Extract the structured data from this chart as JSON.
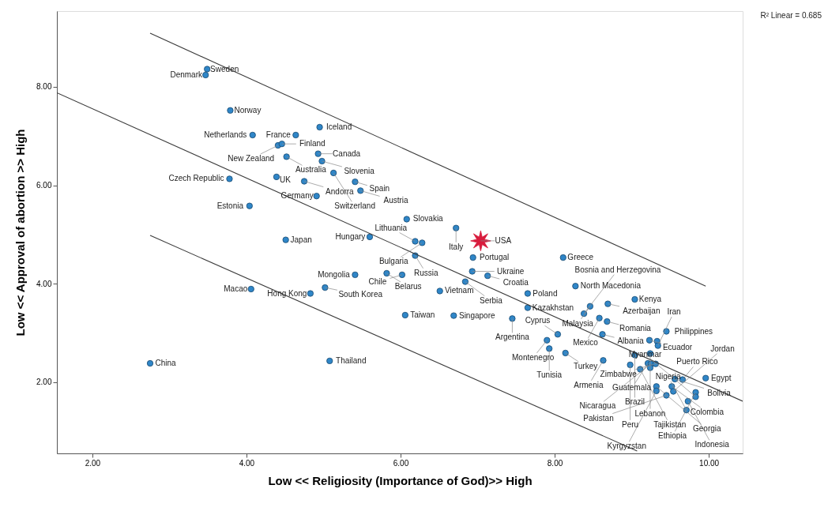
{
  "chart_data": {
    "type": "scatter",
    "xlabel": "Low << Religiosity (Importance of God)>> High",
    "ylabel": "Low << Approval of abortion >> High",
    "xlim": [
      1.54,
      10.44
    ],
    "ylim": [
      0.55,
      9.54
    ],
    "xticks": [
      {
        "value": 2,
        "label": "2.00"
      },
      {
        "value": 4,
        "label": "4.00"
      },
      {
        "value": 6,
        "label": "6.00"
      },
      {
        "value": 8,
        "label": "8.00"
      },
      {
        "value": 10,
        "label": "10.00"
      }
    ],
    "yticks": [
      {
        "value": 2,
        "label": "2.00"
      },
      {
        "value": 4,
        "label": "4.00"
      },
      {
        "value": 6,
        "label": "6.00"
      },
      {
        "value": 8,
        "label": "8.00"
      }
    ],
    "grid": false,
    "series": [
      {
        "marker": "circle",
        "color": "#2f86c8",
        "x": [
          3.49,
          3.47,
          3.79,
          4.95,
          4.08,
          4.64,
          4.41,
          4.46,
          4.52,
          4.93,
          4.98,
          5.13,
          4.39,
          3.78,
          4.75,
          5.41,
          4.91,
          5.48,
          4.04,
          6.08,
          6.72,
          6.19,
          6.28,
          5.6,
          6.19,
          6.94,
          4.51,
          8.11,
          5.82,
          5.41,
          6.02,
          6.93,
          7.13,
          6.84,
          6.51,
          7.65,
          8.27,
          4.06,
          4.83,
          5.02,
          7.65,
          6.06,
          6.69,
          7.45,
          8.46,
          8.69,
          9.04,
          8.38,
          8.58,
          8.68,
          8.04,
          8.62,
          9.45,
          7.9,
          7.93,
          9.23,
          9.33,
          9.34,
          8.14,
          9.04,
          9.24,
          8.63,
          8.98,
          9.11,
          9.21,
          9.25,
          9.24,
          9.31,
          9.56,
          9.66,
          9.96,
          9.32,
          9.32,
          9.52,
          9.54,
          9.45,
          9.83,
          9.83,
          9.73,
          9.71,
          2.75,
          5.08
        ],
        "values": [
          8.36,
          8.24,
          7.52,
          7.18,
          7.02,
          7.02,
          6.81,
          6.84,
          6.58,
          6.64,
          6.49,
          6.25,
          6.17,
          6.13,
          6.08,
          6.07,
          5.78,
          5.89,
          5.58,
          5.31,
          5.13,
          4.86,
          4.83,
          4.95,
          4.57,
          4.53,
          4.89,
          4.53,
          4.21,
          4.18,
          4.18,
          4.25,
          4.16,
          4.04,
          3.85,
          3.8,
          3.95,
          3.89,
          3.8,
          3.92,
          3.51,
          3.36,
          3.35,
          3.29,
          3.54,
          3.59,
          3.68,
          3.39,
          3.3,
          3.23,
          2.97,
          2.97,
          3.03,
          2.85,
          2.68,
          2.85,
          2.83,
          2.74,
          2.59,
          2.55,
          2.58,
          2.44,
          2.35,
          2.26,
          2.38,
          2.37,
          2.29,
          2.37,
          2.06,
          2.05,
          2.08,
          1.91,
          1.82,
          1.91,
          1.81,
          1.73,
          1.79,
          1.7,
          1.61,
          1.43,
          2.38,
          2.43
        ]
      },
      {
        "marker": "star",
        "color": "#d81b3c",
        "x": [
          7.04
        ],
        "values": [
          4.87
        ]
      },
      {
        "type": "line",
        "color": "#3a3a3a",
        "x": [
          1.54,
          10.44
        ],
        "values": [
          7.88,
          1.61
        ]
      },
      {
        "type": "line",
        "color": "#3a3a3a",
        "x": [
          2.75,
          9.96
        ],
        "values": [
          9.09,
          3.95
        ]
      },
      {
        "type": "line",
        "color": "#3a3a3a",
        "x": [
          2.75,
          9.07
        ],
        "values": [
          4.98,
          0.6
        ]
      }
    ],
    "annotations": [
      "R² Linear = 0.685",
      {
        "text": "Sweden",
        "x": 3.49,
        "y": 8.36
      },
      {
        "text": "Denmark",
        "x": 3.47,
        "y": 8.24
      },
      {
        "text": "Norway",
        "x": 3.79,
        "y": 7.52
      },
      {
        "text": "Iceland",
        "x": 4.95,
        "y": 7.18
      },
      {
        "text": "Netherlands",
        "x": 4.08,
        "y": 7.02
      },
      {
        "text": "France",
        "x": 4.64,
        "y": 7.02
      },
      {
        "text": "Finland",
        "x": 4.46,
        "y": 6.84
      },
      {
        "text": "New Zealand",
        "x": 4.41,
        "y": 6.81
      },
      {
        "text": "Australia",
        "x": 4.52,
        "y": 6.58
      },
      {
        "text": "Canada",
        "x": 4.93,
        "y": 6.64
      },
      {
        "text": "Slovenia",
        "x": 4.98,
        "y": 6.49
      },
      {
        "text": "Switzerland",
        "x": 5.13,
        "y": 6.25
      },
      {
        "text": "UK",
        "x": 4.39,
        "y": 6.17
      },
      {
        "text": "Czech Republic",
        "x": 3.78,
        "y": 6.13
      },
      {
        "text": "Andorra",
        "x": 4.75,
        "y": 6.08
      },
      {
        "text": "Germany",
        "x": 4.91,
        "y": 5.78
      },
      {
        "text": "Spain",
        "x": 5.41,
        "y": 6.07
      },
      {
        "text": "Austria",
        "x": 5.48,
        "y": 5.89
      },
      {
        "text": "Estonia",
        "x": 4.04,
        "y": 5.58
      },
      {
        "text": "Slovakia",
        "x": 6.08,
        "y": 5.31
      },
      {
        "text": "Italy",
        "x": 6.72,
        "y": 5.13
      },
      {
        "text": "Lithuania",
        "x": 6.19,
        "y": 4.86
      },
      {
        "text": "USA",
        "x": 7.04,
        "y": 4.87
      },
      {
        "text": "Bulgaria",
        "x": 6.28,
        "y": 4.83
      },
      {
        "text": "Hungary",
        "x": 5.6,
        "y": 4.95
      },
      {
        "text": "Russia",
        "x": 6.19,
        "y": 4.57
      },
      {
        "text": "Japan",
        "x": 4.51,
        "y": 4.89
      },
      {
        "text": "Greece",
        "x": 8.11,
        "y": 4.53
      },
      {
        "text": "Portugal",
        "x": 6.94,
        "y": 4.53
      },
      {
        "text": "Belarus",
        "x": 5.82,
        "y": 4.21
      },
      {
        "text": "Ukraine",
        "x": 6.93,
        "y": 4.25
      },
      {
        "text": "North Macedonia",
        "x": 8.27,
        "y": 3.95
      },
      {
        "text": "Mongolia",
        "x": 5.41,
        "y": 4.18
      },
      {
        "text": "Chile",
        "x": 6.02,
        "y": 4.18
      },
      {
        "text": "Croatia",
        "x": 7.13,
        "y": 4.16
      },
      {
        "text": "Macao",
        "x": 4.06,
        "y": 3.89
      },
      {
        "text": "Vietnam",
        "x": 6.51,
        "y": 3.85
      },
      {
        "text": "Serbia",
        "x": 6.84,
        "y": 4.04
      },
      {
        "text": "Poland",
        "x": 7.65,
        "y": 3.8
      },
      {
        "text": "Azerbaijan",
        "x": 8.69,
        "y": 3.59
      },
      {
        "text": "South Korea",
        "x": 5.02,
        "y": 3.92
      },
      {
        "text": "Hong Kong",
        "x": 4.83,
        "y": 3.8
      },
      {
        "text": "Malaysia",
        "x": 8.46,
        "y": 3.54
      },
      {
        "text": "Kazakhstan",
        "x": 7.65,
        "y": 3.51
      },
      {
        "text": "Kenya",
        "x": 9.04,
        "y": 3.68
      },
      {
        "text": "Romania",
        "x": 8.68,
        "y": 3.23
      },
      {
        "text": "Philippines",
        "x": 9.45,
        "y": 3.03
      },
      {
        "text": "Taiwan",
        "x": 6.06,
        "y": 3.36
      },
      {
        "text": "Bosnia and Herzegovina",
        "x": 8.38,
        "y": 3.39
      },
      {
        "text": "Mexico",
        "x": 8.58,
        "y": 3.3
      },
      {
        "text": "Singapore",
        "x": 6.69,
        "y": 3.35
      },
      {
        "text": "Argentina",
        "x": 7.45,
        "y": 3.29
      },
      {
        "text": "Albania",
        "x": 8.62,
        "y": 2.97
      },
      {
        "text": "Cyprus",
        "x": 8.04,
        "y": 2.97
      },
      {
        "text": "Puerto Rico",
        "x": 9.66,
        "y": 2.05
      },
      {
        "text": "Montenegro",
        "x": 7.9,
        "y": 2.85
      },
      {
        "text": "Guatemala",
        "x": 9.21,
        "y": 2.38
      },
      {
        "text": "Ecuador",
        "x": 9.23,
        "y": 2.85
      },
      {
        "text": "Iran",
        "x": 9.34,
        "y": 2.74
      },
      {
        "text": "Zimbabwe",
        "x": 9.31,
        "y": 2.37
      },
      {
        "text": "Lebanon",
        "x": 9.24,
        "y": 2.58
      },
      {
        "text": "Colombia",
        "x": 9.52,
        "y": 1.91
      },
      {
        "text": "Turkey",
        "x": 8.14,
        "y": 2.59
      },
      {
        "text": "Brazil",
        "x": 9.04,
        "y": 2.55
      },
      {
        "text": "Tunisia",
        "x": 7.93,
        "y": 2.68
      },
      {
        "text": "Nicaragua",
        "x": 9.25,
        "y": 2.37
      },
      {
        "text": "China",
        "x": 2.75,
        "y": 2.38
      },
      {
        "text": "Thailand",
        "x": 5.08,
        "y": 2.43
      },
      {
        "text": "Armenia",
        "x": 8.63,
        "y": 2.44
      },
      {
        "text": "Egypt",
        "x": 9.96,
        "y": 2.08
      },
      {
        "text": "Peru",
        "x": 8.98,
        "y": 2.35
      },
      {
        "text": "Bolivia",
        "x": 9.56,
        "y": 2.06
      },
      {
        "text": "Tajikistan",
        "x": 9.11,
        "y": 2.26
      },
      {
        "text": "Georgia",
        "x": 9.32,
        "y": 1.91
      },
      {
        "text": "Ethiopia",
        "x": 9.83,
        "y": 1.79
      },
      {
        "text": "Kyrgyzstan",
        "x": 9.32,
        "y": 1.82
      },
      {
        "text": "Pakistan",
        "x": 9.45,
        "y": 1.73
      },
      {
        "text": "Jordan",
        "x": 9.54,
        "y": 1.81
      },
      {
        "text": "Indonesia",
        "x": 9.73,
        "y": 1.61
      },
      {
        "text": "Nigeria",
        "x": 9.71,
        "y": 1.43
      },
      {
        "text": "Myanmar",
        "x": 9.83,
        "y": 1.7
      }
    ]
  }
}
